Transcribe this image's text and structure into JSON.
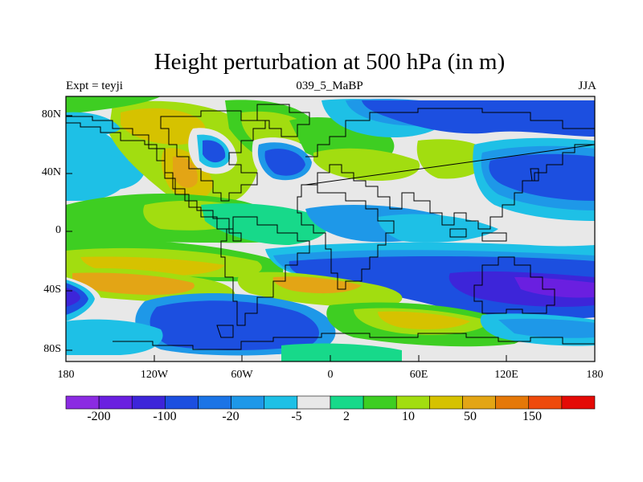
{
  "title": "Height perturbation at 500 hPa (in m)",
  "subtitle_left": "Expt = teyji",
  "subtitle_center": "039_5_MaBP",
  "subtitle_right": "JJA",
  "y_ticks": [
    "80N",
    "40N",
    "0",
    "40S",
    "80S"
  ],
  "x_ticks": [
    "180",
    "120W",
    "60W",
    "0",
    "60E",
    "120E",
    "180"
  ],
  "colorbar": {
    "colors": [
      "#8b2be2",
      "#6a1fe0",
      "#3d25d9",
      "#1c4fe0",
      "#1b74e6",
      "#1e98e8",
      "#1ec0e6",
      "#e8e8e8",
      "#17d98a",
      "#3ece22",
      "#a2dd10",
      "#d6c200",
      "#e3a515",
      "#e57808",
      "#ee4a0c",
      "#e40a06"
    ],
    "labels": [
      "-200",
      "-100",
      "-20",
      "-5",
      "2",
      "10",
      "50",
      "150"
    ]
  },
  "palette": {
    "ocean_white": "#e8e8e8",
    "lightblue": "#1ec0e6",
    "skyblue": "#1e98e8",
    "blue": "#1c4fe0",
    "deepblue": "#3d25d9",
    "purple": "#6a1fe0",
    "teal": "#17d98a",
    "green": "#3ece22",
    "yellowgreen": "#a2dd10",
    "yellow": "#d6c200",
    "gold": "#e3a515",
    "orange": "#e57808"
  }
}
